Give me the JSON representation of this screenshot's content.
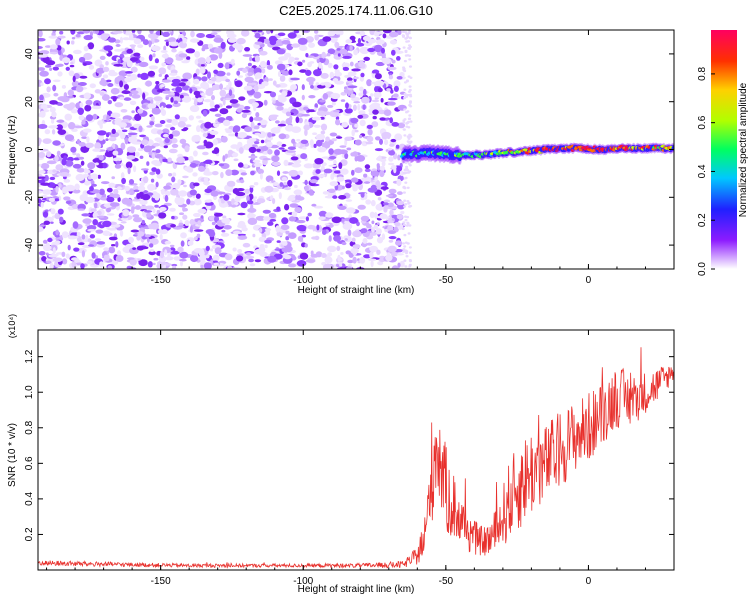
{
  "title": "C2E5.2025.174.11.06.G10",
  "colors": {
    "signal": "#7d2cff",
    "line": "#e8302c"
  },
  "chart_data": [
    {
      "type": "heatmap",
      "xlabel": "Height of straight line (km)",
      "ylabel": "Frequency (Hz)",
      "xlim": [
        -193,
        30
      ],
      "ylim": [
        -50,
        50
      ],
      "x_ticks": [
        -150,
        -100,
        -50,
        0
      ],
      "x_tick_labels": [
        "-150",
        "-100",
        "-50",
        "0"
      ],
      "y_ticks": [
        -40,
        -20,
        0,
        20,
        40
      ],
      "y_tick_labels": [
        "-40",
        "-20",
        "0",
        "20",
        "40"
      ],
      "noise_region_end_x": -65,
      "signal_track": {
        "x": [
          -65,
          -55,
          -45,
          -35,
          -25,
          -15,
          -5,
          5,
          15,
          25,
          30
        ],
        "y": [
          -2,
          -1.5,
          -2.5,
          -2,
          -1,
          0,
          0.5,
          0,
          0.5,
          0.5,
          0.5
        ],
        "peak_amplitude": [
          0.4,
          0.45,
          0.5,
          0.55,
          0.65,
          0.95,
          0.9,
          0.95,
          0.85,
          0.7,
          0.7
        ]
      },
      "colorbar": {
        "label": "Normalized spectral amplitude",
        "range": [
          0.0,
          0.98
        ],
        "ticks": [
          0.0,
          0.2,
          0.4,
          0.6,
          0.8
        ],
        "tick_labels": [
          "0.0",
          "0.2",
          "0.4",
          "0.6",
          "0.8"
        ]
      }
    },
    {
      "type": "line",
      "xlabel": "Height of straight line (km)",
      "ylabel": "SNR (10 * v/v)",
      "y_multiplier": "(x10⁴)",
      "xlim": [
        -193,
        30
      ],
      "ylim": [
        0,
        1.35
      ],
      "x_ticks": [
        -150,
        -100,
        -50,
        0
      ],
      "x_tick_labels": [
        "-150",
        "-100",
        "-50",
        "0"
      ],
      "y_ticks": [
        0.2,
        0.4,
        0.6,
        0.8,
        1.0,
        1.2
      ],
      "y_tick_labels": [
        "0.2",
        "0.4",
        "0.6",
        "0.8",
        "1.0",
        "1.2"
      ],
      "series_envelope": {
        "x": [
          -193,
          -180,
          -160,
          -140,
          -120,
          -100,
          -80,
          -65,
          -60,
          -57,
          -55,
          -53,
          -52,
          -50,
          -47,
          -45,
          -42,
          -40,
          -37,
          -35,
          -32,
          -30,
          -28,
          -25,
          -22,
          -20,
          -15,
          -10,
          -5,
          0,
          5,
          8,
          10,
          15,
          20,
          25,
          30
        ],
        "y": [
          0.04,
          0.035,
          0.03,
          0.025,
          0.025,
          0.025,
          0.025,
          0.03,
          0.08,
          0.2,
          0.55,
          0.72,
          0.62,
          0.45,
          0.35,
          0.28,
          0.22,
          0.18,
          0.16,
          0.17,
          0.22,
          0.3,
          0.38,
          0.45,
          0.52,
          0.55,
          0.6,
          0.68,
          0.75,
          0.8,
          0.88,
          0.95,
          0.98,
          0.95,
          1.0,
          1.05,
          1.12
        ]
      },
      "noise_amplitude": [
        0.015,
        0.015,
        0.012,
        0.01,
        0.01,
        0.01,
        0.012,
        0.02,
        0.05,
        0.15,
        0.3,
        0.3,
        0.28,
        0.25,
        0.2,
        0.15,
        0.12,
        0.1,
        0.08,
        0.1,
        0.14,
        0.18,
        0.22,
        0.25,
        0.25,
        0.25,
        0.22,
        0.22,
        0.2,
        0.2,
        0.18,
        0.18,
        0.18,
        0.15,
        0.12,
        0.1,
        0.05
      ]
    }
  ]
}
